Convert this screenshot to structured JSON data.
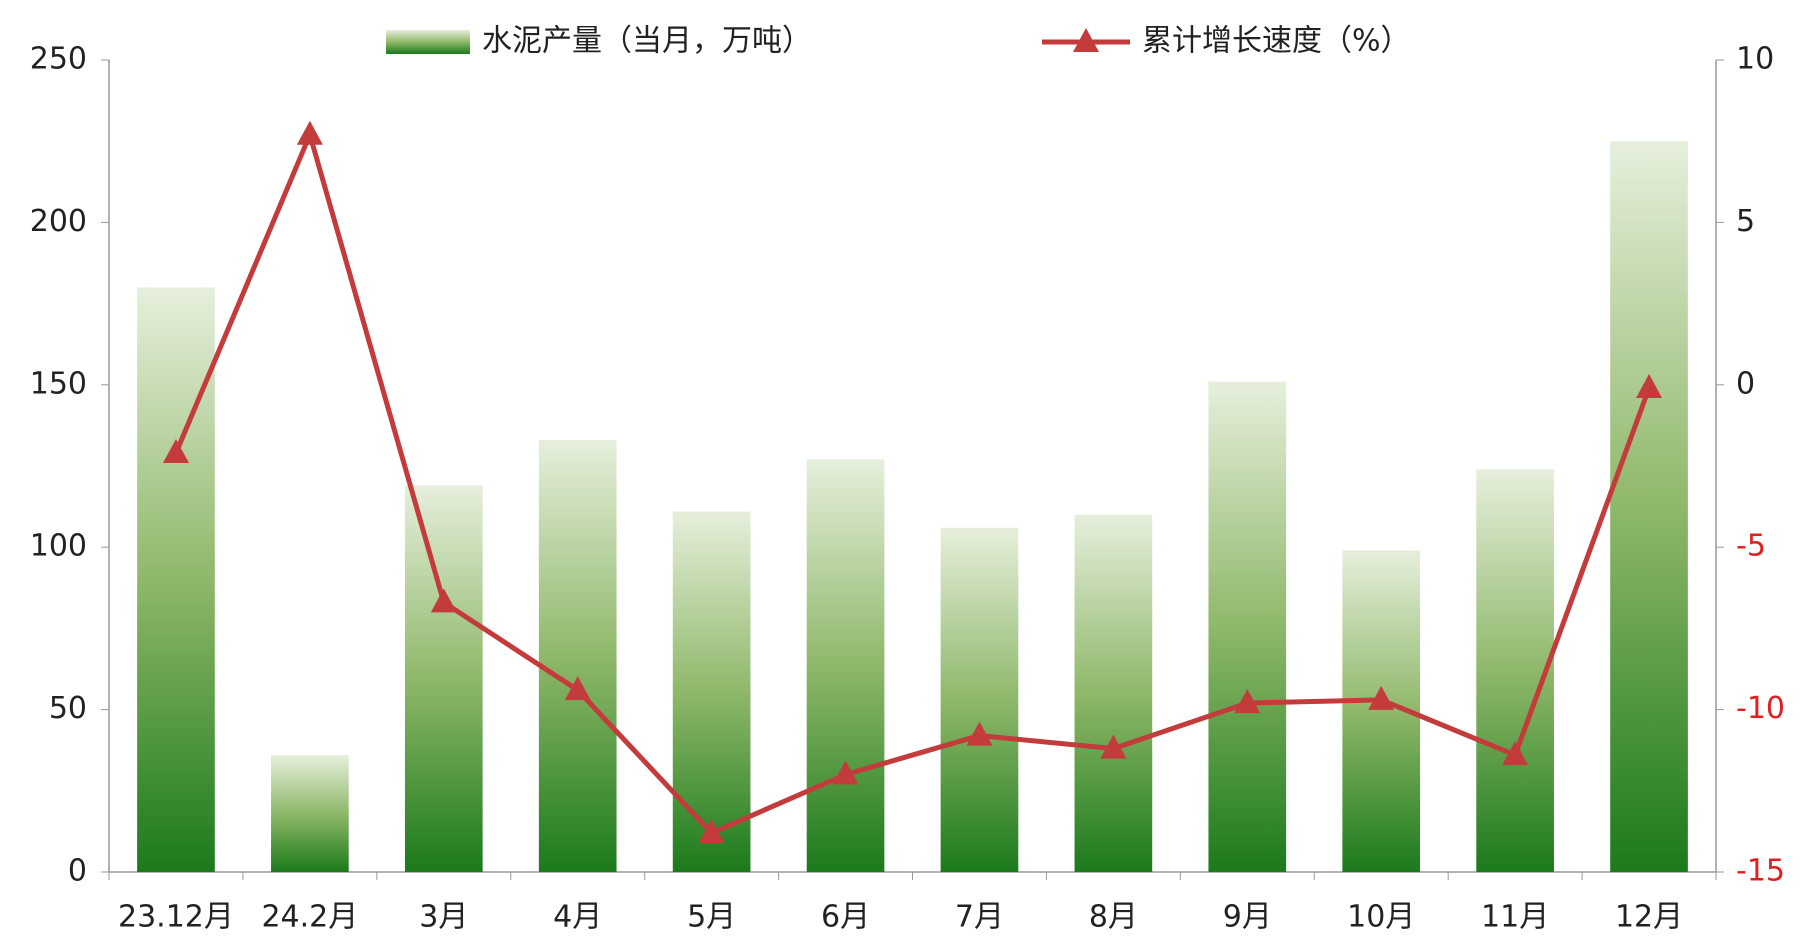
{
  "chart_data": {
    "type": "bar-line",
    "categories": [
      "23.12月",
      "24.2月",
      "3月",
      "4月",
      "5月",
      "6月",
      "7月",
      "8月",
      "9月",
      "10月",
      "11月",
      "12月"
    ],
    "series": [
      {
        "name": "水泥产量（当月，万吨）",
        "type": "bar",
        "color": "#1b7a1b",
        "values": [
          180,
          36,
          119,
          133,
          111,
          127,
          106,
          110,
          151,
          99,
          124,
          225
        ]
      },
      {
        "name": "累计增长速度（%）",
        "type": "line",
        "axis": "y2",
        "color": "#c33b3b",
        "values": [
          -2.1,
          7.7,
          -6.7,
          -9.4,
          -13.8,
          -12.0,
          -10.8,
          -11.2,
          -9.8,
          -9.7,
          -11.4,
          -0.1
        ]
      }
    ],
    "ylim": [
      0,
      250
    ],
    "yticks": [
      0,
      50,
      100,
      150,
      200,
      250
    ],
    "y2lim": [
      -15,
      10
    ],
    "y2ticks": [
      -15,
      -10,
      -5,
      0,
      5,
      10
    ],
    "y2_negative_tick_color": "#e02020",
    "grid": false
  }
}
